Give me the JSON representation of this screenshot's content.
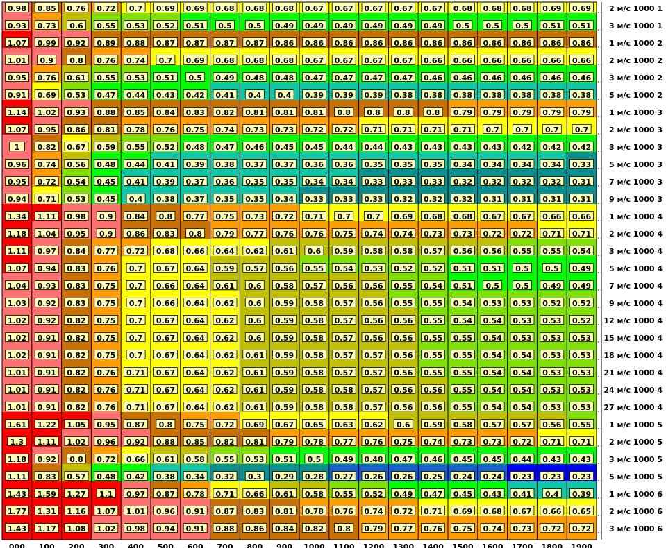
{
  "chart_data": {
    "type": "heatmap",
    "title": "",
    "xlabel": "",
    "ylabel": "",
    "x_categories": [
      "000",
      "100",
      "200",
      "300",
      "400",
      "500",
      "600",
      "700",
      "800",
      "900",
      "1000",
      "1100",
      "1200",
      "1300",
      "1400",
      "1500",
      "1600",
      "1700",
      "1800",
      "1900"
    ],
    "y_categories": [
      "2 м/с 1000 1",
      "3 м/с 1000 1",
      "1 м/с 1000 2",
      "2 м/с 1000 2",
      "3 м/с 1000 2",
      "5 м/с 1000 2",
      "1 м/с 1000 3",
      "2 м/с 1000 3",
      "3 м/с 1000 3",
      "5 м/с 1000 3",
      "7 м/с 1000 3",
      "9 м/с 1000 3",
      "1 м/с 1000 4",
      "2 м/с 1000 4",
      "3 м/с 1000 4",
      "5 м/с 1000 4",
      "7 м/с 1000 4",
      "9 м/с 1000 4",
      "12 м/с 1000 4",
      "15 м/с 1000 4",
      "18 м/с 1000 4",
      "21 м/с 1000 4",
      "24 м/с 1000 4",
      "27 м/с 1000 4",
      "1 м/с 1000 5",
      "2 м/с 1000 5",
      "3 м/с 1000 5",
      "5 м/с 1000 5",
      "1 м/с 1000 6",
      "2 м/с 1000 6",
      "3 м/с 1000 6"
    ],
    "row_groups": [
      {
        "values": [
          0.98,
          0.85,
          0.76,
          0.72,
          0.7,
          0.69,
          0.69,
          0.68,
          0.68,
          0.68,
          0.67,
          0.67,
          0.67,
          0.67,
          0.67,
          0.68,
          0.68,
          0.68,
          0.69,
          0.69
        ]
      },
      {
        "values": [
          0.93,
          0.73,
          0.6,
          0.55,
          0.53,
          0.52,
          0.51,
          0.5,
          0.5,
          0.49,
          0.49,
          0.49,
          0.49,
          0.49,
          0.49,
          0.5,
          0.5,
          0.5,
          0.51,
          0.51
        ]
      },
      {
        "values": [
          1.07,
          0.99,
          0.92,
          0.89,
          0.88,
          0.87,
          0.87,
          0.87,
          0.87,
          0.86,
          0.86,
          0.86,
          0.86,
          0.86,
          0.86,
          0.86,
          0.86,
          0.86,
          0.86,
          0.86
        ]
      },
      {
        "values": [
          1.01,
          0.9,
          0.8,
          0.76,
          0.74,
          0.7,
          0.69,
          0.68,
          0.68,
          0.68,
          0.67,
          0.67,
          0.67,
          0.67,
          0.66,
          0.66,
          0.66,
          0.66,
          0.66,
          0.66
        ]
      },
      {
        "values": [
          0.95,
          0.76,
          0.61,
          0.55,
          0.53,
          0.51,
          0.5,
          0.49,
          0.48,
          0.48,
          0.47,
          0.47,
          0.47,
          0.47,
          0.46,
          0.46,
          0.46,
          0.46,
          0.46,
          0.46
        ]
      },
      {
        "values": [
          0.91,
          0.69,
          0.53,
          0.47,
          0.44,
          0.43,
          0.42,
          0.41,
          0.4,
          0.4,
          0.39,
          0.39,
          0.39,
          0.38,
          0.38,
          0.38,
          0.38,
          0.38,
          0.38,
          0.38
        ]
      },
      {
        "values": [
          1.14,
          1.02,
          0.93,
          0.88,
          0.85,
          0.84,
          0.83,
          0.82,
          0.81,
          0.81,
          0.81,
          0.8,
          0.8,
          0.8,
          0.8,
          0.79,
          0.79,
          0.79,
          0.79,
          0.79
        ]
      },
      {
        "values": [
          1.07,
          0.95,
          0.86,
          0.81,
          0.78,
          0.76,
          0.75,
          0.74,
          0.73,
          0.73,
          0.72,
          0.72,
          0.71,
          0.71,
          0.71,
          0.71,
          0.7,
          0.7,
          0.7,
          0.7
        ]
      },
      {
        "values": [
          1.0,
          0.82,
          0.67,
          0.59,
          0.55,
          0.52,
          0.48,
          0.47,
          0.46,
          0.45,
          0.45,
          0.44,
          0.44,
          0.43,
          0.43,
          0.43,
          0.43,
          0.42,
          0.42,
          0.42
        ]
      },
      {
        "values": [
          0.96,
          0.74,
          0.56,
          0.48,
          0.44,
          0.41,
          0.39,
          0.38,
          0.37,
          0.37,
          0.36,
          0.36,
          0.35,
          0.35,
          0.35,
          0.34,
          0.34,
          0.34,
          0.34,
          0.33
        ]
      },
      {
        "values": [
          0.95,
          0.72,
          0.54,
          0.45,
          0.41,
          0.39,
          0.37,
          0.36,
          0.35,
          0.35,
          0.34,
          0.34,
          0.33,
          0.33,
          0.33,
          0.32,
          0.32,
          0.32,
          0.32,
          0.31
        ]
      },
      {
        "values": [
          0.94,
          0.71,
          0.53,
          0.45,
          0.4,
          0.38,
          0.37,
          0.35,
          0.35,
          0.34,
          0.33,
          0.33,
          0.33,
          0.32,
          0.32,
          0.32,
          0.31,
          0.31,
          0.31,
          0.31
        ]
      },
      {
        "values": [
          1.34,
          1.11,
          0.98,
          0.9,
          0.84,
          0.8,
          0.77,
          0.75,
          0.73,
          0.72,
          0.71,
          0.7,
          0.7,
          0.69,
          0.68,
          0.68,
          0.67,
          0.67,
          0.66,
          0.66
        ]
      },
      {
        "values": [
          1.18,
          1.04,
          0.95,
          0.9,
          0.86,
          0.83,
          0.8,
          0.79,
          0.77,
          0.76,
          0.76,
          0.75,
          0.74,
          0.74,
          0.73,
          0.73,
          0.72,
          0.72,
          0.71,
          0.71
        ]
      },
      {
        "values": [
          1.11,
          0.97,
          0.84,
          0.77,
          0.72,
          0.68,
          0.66,
          0.64,
          0.62,
          0.61,
          0.6,
          0.59,
          0.58,
          0.58,
          0.57,
          0.56,
          0.56,
          0.55,
          0.55,
          0.54
        ]
      },
      {
        "values": [
          1.07,
          0.94,
          0.83,
          0.76,
          0.7,
          0.67,
          0.64,
          0.59,
          0.57,
          0.56,
          0.55,
          0.54,
          0.53,
          0.52,
          0.52,
          0.51,
          0.51,
          0.5,
          0.5,
          0.49
        ]
      },
      {
        "values": [
          1.04,
          0.93,
          0.83,
          0.75,
          0.7,
          0.66,
          0.64,
          0.61,
          0.6,
          0.58,
          0.57,
          0.56,
          0.56,
          0.55,
          0.54,
          0.51,
          0.5,
          0.5,
          0.49,
          0.49
        ]
      },
      {
        "values": [
          1.03,
          0.92,
          0.83,
          0.75,
          0.7,
          0.66,
          0.64,
          0.62,
          0.6,
          0.59,
          0.58,
          0.57,
          0.56,
          0.55,
          0.55,
          0.54,
          0.53,
          0.53,
          0.52,
          0.52
        ]
      },
      {
        "values": [
          1.02,
          0.92,
          0.82,
          0.75,
          0.7,
          0.67,
          0.64,
          0.62,
          0.6,
          0.59,
          0.58,
          0.57,
          0.56,
          0.56,
          0.55,
          0.54,
          0.54,
          0.53,
          0.53,
          0.52
        ]
      },
      {
        "values": [
          1.02,
          0.91,
          0.82,
          0.75,
          0.7,
          0.67,
          0.64,
          0.62,
          0.6,
          0.59,
          0.58,
          0.57,
          0.56,
          0.56,
          0.55,
          0.55,
          0.54,
          0.53,
          0.53,
          0.53
        ]
      },
      {
        "values": [
          1.02,
          0.91,
          0.82,
          0.75,
          0.7,
          0.67,
          0.64,
          0.62,
          0.61,
          0.59,
          0.58,
          0.57,
          0.57,
          0.56,
          0.55,
          0.55,
          0.54,
          0.54,
          0.53,
          0.53
        ]
      },
      {
        "values": [
          1.01,
          0.91,
          0.82,
          0.76,
          0.71,
          0.67,
          0.64,
          0.62,
          0.61,
          0.59,
          0.58,
          0.57,
          0.57,
          0.56,
          0.55,
          0.55,
          0.54,
          0.54,
          0.53,
          0.53
        ]
      },
      {
        "values": [
          1.01,
          0.91,
          0.82,
          0.76,
          0.71,
          0.67,
          0.64,
          0.62,
          0.61,
          0.59,
          0.58,
          0.58,
          0.57,
          0.56,
          0.56,
          0.55,
          0.54,
          0.54,
          0.53,
          0.53
        ]
      },
      {
        "values": [
          1.01,
          0.91,
          0.82,
          0.76,
          0.71,
          0.67,
          0.64,
          0.62,
          0.61,
          0.59,
          0.58,
          0.58,
          0.57,
          0.56,
          0.56,
          0.55,
          0.54,
          0.54,
          0.53,
          0.53
        ]
      },
      {
        "values": [
          1.61,
          1.22,
          1.05,
          0.95,
          0.87,
          0.8,
          0.75,
          0.72,
          0.69,
          0.67,
          0.65,
          0.63,
          0.62,
          0.6,
          0.59,
          0.58,
          0.57,
          0.57,
          0.56,
          0.55
        ]
      },
      {
        "values": [
          1.3,
          1.11,
          1.02,
          0.96,
          0.92,
          0.88,
          0.85,
          0.82,
          0.81,
          0.79,
          0.78,
          0.77,
          0.76,
          0.75,
          0.74,
          0.73,
          0.73,
          0.72,
          0.71,
          0.71
        ]
      },
      {
        "values": [
          1.18,
          0.92,
          0.8,
          0.72,
          0.66,
          0.61,
          0.58,
          0.55,
          0.53,
          0.51,
          0.5,
          0.49,
          0.48,
          0.47,
          0.46,
          0.45,
          0.45,
          0.44,
          0.43,
          0.43
        ]
      },
      {
        "values": [
          1.11,
          0.83,
          0.57,
          0.48,
          0.42,
          0.38,
          0.34,
          0.32,
          0.3,
          0.29,
          0.28,
          0.27,
          0.26,
          0.26,
          0.25,
          0.24,
          0.24,
          0.23,
          0.23,
          0.23
        ]
      },
      {
        "values": [
          1.43,
          1.59,
          1.27,
          1.1,
          0.97,
          0.87,
          0.78,
          0.71,
          0.66,
          0.61,
          0.58,
          0.55,
          0.52,
          0.49,
          0.47,
          0.45,
          0.43,
          0.41,
          0.4,
          0.39
        ]
      },
      {
        "values": [
          1.77,
          1.31,
          1.16,
          1.07,
          1.01,
          0.96,
          0.91,
          0.87,
          0.83,
          0.81,
          0.78,
          0.76,
          0.74,
          0.72,
          0.71,
          0.69,
          0.68,
          0.67,
          0.66,
          0.65
        ]
      },
      {
        "values": [
          1.43,
          1.17,
          1.08,
          1.02,
          0.98,
          0.94,
          0.91,
          0.88,
          0.86,
          0.84,
          0.82,
          0.8,
          0.79,
          0.77,
          0.76,
          0.75,
          0.74,
          0.73,
          0.72,
          0.72
        ]
      }
    ],
    "colors": {
      "scale": [
        "#0000ff",
        "#1a5fd0",
        "#0a9090",
        "#10c8a8",
        "#00ff00",
        "#80e000",
        "#c0c000",
        "#ffff00",
        "#ff9c00",
        "#c87000",
        "#ff7070",
        "#ff0000"
      ],
      "thresholds": [
        0.24,
        0.28,
        0.34,
        0.42,
        0.52,
        0.56,
        0.62,
        0.72,
        0.8,
        0.9,
        1.05
      ],
      "label_fill": "#ffffb0",
      "grid": "#000000"
    },
    "grid": true,
    "legend": "none"
  }
}
